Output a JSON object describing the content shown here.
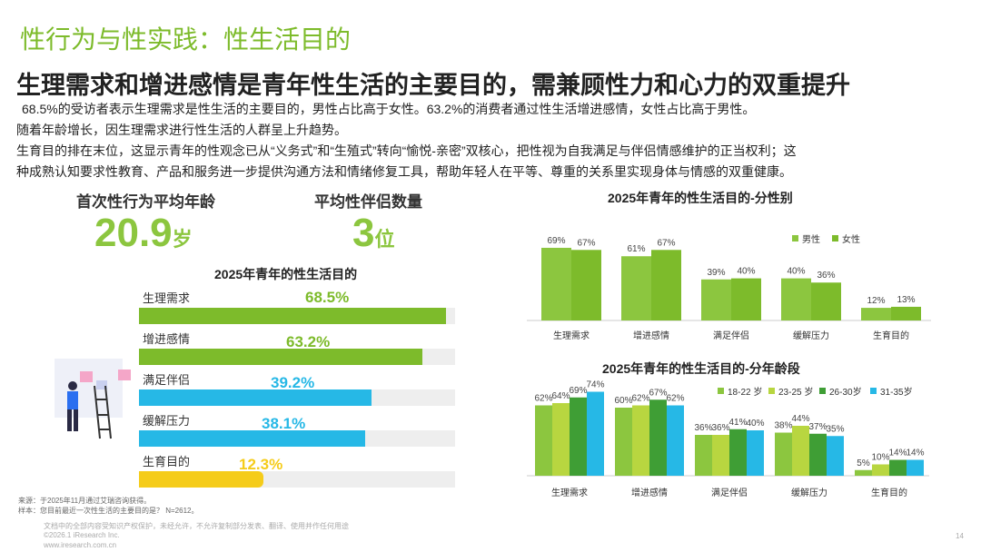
{
  "header": {
    "title": "性行为与性实践：性生活目的",
    "subtitle": "生理需求和增进感情是青年性生活的主要目的，需兼顾性力和心力的双重提升"
  },
  "body_text": [
    "68.5%的受访者表示生理需求是性生活的主要目的，男性占比高于女性。63.2%的消费者通过性生活增进感情，女性占比高于男性。",
    "随着年龄增长，因生理需求进行性生活的人群呈上升趋势。",
    "生育目的排在末位，这显示青年的性观念已从“义务式”和“生殖式”转向“愉悦-亲密”双核心，把性视为自我满足与伴侣情感维护的正当权利；这",
    "种成熟认知要求性教育、产品和服务进一步提供沟通方法和情绪修复工具，帮助年轻人在平等、尊重的关系里实现身体与情感的双重健康。"
  ],
  "kpis": [
    {
      "label": "首次性行为平均年龄",
      "value": "20.9",
      "unit": "岁"
    },
    {
      "label": "平均性伴侣数量",
      "value": "3",
      "unit": "位"
    }
  ],
  "colors": {
    "green_dark": "#7dbb2b",
    "green_light": "#a9d158",
    "cyan": "#26b8e6",
    "yellow": "#f5cc1a",
    "green_mid": "#3f9e35",
    "lime": "#b8d640"
  },
  "footnotes": {
    "source": "来源：于2025年11月通过艾瑞咨询获得。",
    "sample": "样本：您目前最近一次性生活的主要目的是？ N=2612。",
    "disclaimer": "文档中的全部内容受知识产权保护，未经允许，不允许复制部分发表、翻译、使用并作任何用途",
    "copyright": "©2026.1 iResearch Inc.",
    "website": "www.iresearch.com.cn",
    "page_number": "14"
  },
  "chart_data": [
    {
      "type": "bar",
      "orientation": "horizontal",
      "title": "2025年青年的性生活目的",
      "categories": [
        "生理需求",
        "增进感情",
        "满足伴侣",
        "缓解压力",
        "生育目的"
      ],
      "values": [
        68.5,
        63.2,
        39.2,
        38.1,
        12.3
      ],
      "value_labels": [
        "68.5%",
        "63.2%",
        "39.2%",
        "38.1%",
        "12.3%"
      ],
      "xlim": [
        0,
        100
      ]
    },
    {
      "type": "bar",
      "title": "2025年青年的性生活目的-分性别",
      "categories": [
        "生理需求",
        "增进感情",
        "满足伴侣",
        "缓解压力",
        "生育目的"
      ],
      "series": [
        {
          "name": "男性",
          "values": [
            69,
            61,
            39,
            40,
            12
          ],
          "color": "#8cc63f"
        },
        {
          "name": "女性",
          "values": [
            67,
            67,
            40,
            36,
            13
          ],
          "color": "#7dbb2b"
        }
      ],
      "ylim": [
        0,
        75
      ],
      "legend": "top-right"
    },
    {
      "type": "bar",
      "title": "2025年青年的性生活目的-分年龄段",
      "categories": [
        "生理需求",
        "增进感情",
        "满足伴侣",
        "缓解压力",
        "生育目的"
      ],
      "series": [
        {
          "name": "18-22 岁",
          "values": [
            62,
            60,
            36,
            38,
            5
          ],
          "color": "#8cc63f"
        },
        {
          "name": "23-25 岁",
          "values": [
            64,
            62,
            36,
            44,
            10
          ],
          "color": "#b8d640"
        },
        {
          "name": "26-30岁",
          "values": [
            69,
            67,
            41,
            37,
            14
          ],
          "color": "#3f9e35"
        },
        {
          "name": "31-35岁",
          "values": [
            74,
            62,
            40,
            35,
            14
          ],
          "color": "#26b8e6"
        }
      ],
      "ylim": [
        0,
        80
      ],
      "legend": "top-right"
    }
  ]
}
